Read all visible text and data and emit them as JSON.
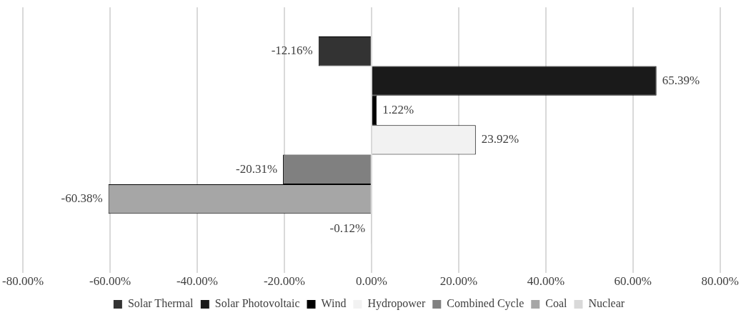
{
  "chart_data": {
    "type": "bar",
    "orientation": "horizontal",
    "categories": [
      null
    ],
    "series": [
      {
        "name": "Solar Thermal",
        "color": "#333333",
        "values": [
          -12.16
        ],
        "value_labels": [
          "-12.16%"
        ]
      },
      {
        "name": "Solar Photovoltaic",
        "color": "#1a1a1a",
        "values": [
          65.39
        ],
        "value_labels": [
          "65.39%"
        ]
      },
      {
        "name": "Wind",
        "color": "#000000",
        "values": [
          1.22
        ],
        "value_labels": [
          "1.22%"
        ]
      },
      {
        "name": "Hydropower",
        "color": "#f2f2f2",
        "values": [
          23.92
        ],
        "value_labels": [
          "23.92%"
        ]
      },
      {
        "name": "Combined Cycle",
        "color": "#808080",
        "values": [
          -20.31
        ],
        "value_labels": [
          "-20.31%"
        ]
      },
      {
        "name": "Coal",
        "color": "#a6a6a6",
        "values": [
          -60.38
        ],
        "value_labels": [
          "-60.38%"
        ]
      },
      {
        "name": "Nuclear",
        "color": "#d9d9d9",
        "values": [
          -0.12
        ],
        "value_labels": [
          "-0.12%"
        ]
      }
    ],
    "xlim": [
      -80,
      80
    ],
    "xticks": [
      {
        "value": -80,
        "label": "-80.00%"
      },
      {
        "value": -60,
        "label": "-60.00%"
      },
      {
        "value": -40,
        "label": "-40.00%"
      },
      {
        "value": -20,
        "label": "-20.00%"
      },
      {
        "value": 0,
        "label": "0.00%"
      },
      {
        "value": 20,
        "label": "20.00%"
      },
      {
        "value": 40,
        "label": "40.00%"
      },
      {
        "value": 60,
        "label": "60.00%"
      },
      {
        "value": 80,
        "label": "80.00%"
      }
    ],
    "grid": "x",
    "legend": "bottom"
  }
}
